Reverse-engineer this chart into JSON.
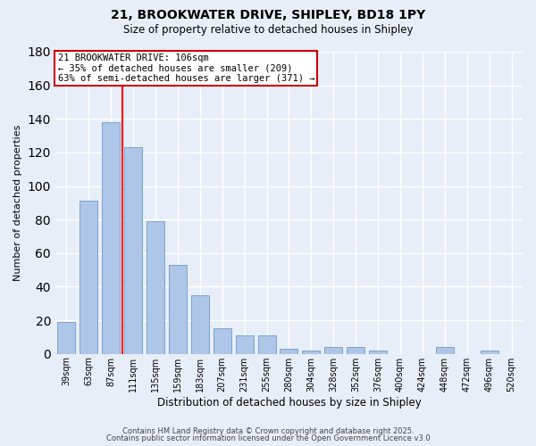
{
  "title_line1": "21, BROOKWATER DRIVE, SHIPLEY, BD18 1PY",
  "title_line2": "Size of property relative to detached houses in Shipley",
  "xlabel": "Distribution of detached houses by size in Shipley",
  "ylabel": "Number of detached properties",
  "categories": [
    "39sqm",
    "63sqm",
    "87sqm",
    "111sqm",
    "135sqm",
    "159sqm",
    "183sqm",
    "207sqm",
    "231sqm",
    "255sqm",
    "280sqm",
    "304sqm",
    "328sqm",
    "352sqm",
    "376sqm",
    "400sqm",
    "424sqm",
    "448sqm",
    "472sqm",
    "496sqm",
    "520sqm"
  ],
  "values": [
    19,
    91,
    138,
    123,
    79,
    53,
    35,
    15,
    11,
    11,
    3,
    2,
    4,
    4,
    2,
    0,
    0,
    4,
    0,
    2,
    0
  ],
  "bar_color": "#aec6e8",
  "bar_edge_color": "#5a8fc0",
  "background_color": "#e8eef8",
  "grid_color": "#ffffff",
  "red_line_x": 2.5,
  "annotation_title": "21 BROOKWATER DRIVE: 106sqm",
  "annotation_line1": "← 35% of detached houses are smaller (209)",
  "annotation_line2": "63% of semi-detached houses are larger (371) →",
  "annotation_box_color": "#ffffff",
  "annotation_box_edge": "#cc0000",
  "ylim": [
    0,
    180
  ],
  "yticks": [
    0,
    20,
    40,
    60,
    80,
    100,
    120,
    140,
    160,
    180
  ],
  "footer_line1": "Contains HM Land Registry data © Crown copyright and database right 2025.",
  "footer_line2": "Contains public sector information licensed under the Open Government Licence v3.0"
}
